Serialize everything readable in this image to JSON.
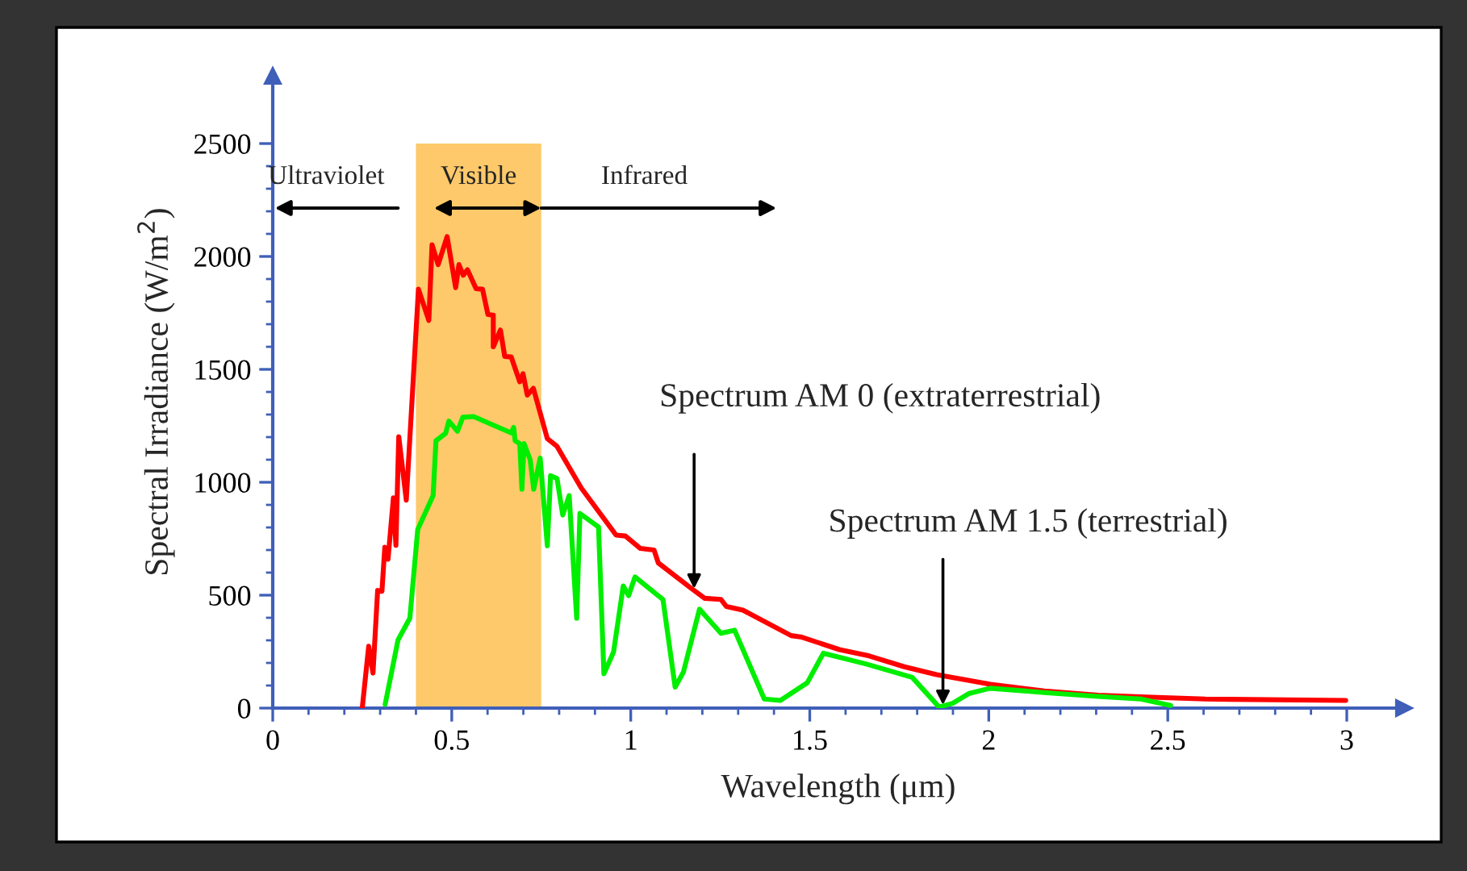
{
  "chart_data": {
    "type": "line",
    "xlabel": "Wavelength (μm)",
    "ylabel": "Spectral Irradiance (W/m$^{2}$)",
    "xlim": [
      0,
      3.16
    ],
    "ylim": [
      0,
      2800
    ],
    "xticks": [
      0,
      {
        "value": 0.1,
        "label": null
      },
      {
        "value": 0.2,
        "label": null
      },
      {
        "value": 0.3,
        "label": null
      },
      {
        "value": 0.4,
        "label": null
      },
      0.5,
      {
        "value": 0.6,
        "label": null
      },
      {
        "value": 0.7,
        "label": null
      },
      {
        "value": 0.8,
        "label": null
      },
      {
        "value": 0.9,
        "label": null
      },
      1,
      {
        "value": 1.1,
        "label": null
      },
      {
        "value": 1.2,
        "label": null
      },
      {
        "value": 1.3,
        "label": null
      },
      {
        "value": 1.4,
        "label": null
      },
      1.5,
      {
        "value": 1.6,
        "label": null
      },
      {
        "value": 1.7,
        "label": null
      },
      {
        "value": 1.8,
        "label": null
      },
      {
        "value": 1.9,
        "label": null
      },
      2,
      {
        "value": 2.1,
        "label": null
      },
      {
        "value": 2.2,
        "label": null
      },
      {
        "value": 2.3,
        "label": null
      },
      {
        "value": 2.4,
        "label": null
      },
      2.5,
      {
        "value": 2.6,
        "label": null
      },
      {
        "value": 2.7,
        "label": null
      },
      {
        "value": 2.8,
        "label": null
      },
      {
        "value": 2.9,
        "label": null
      },
      3
    ],
    "yticks": [
      0,
      {
        "value": 100,
        "label": null
      },
      {
        "value": 200,
        "label": null
      },
      {
        "value": 300,
        "label": null
      },
      {
        "value": 400,
        "label": null
      },
      500,
      {
        "value": 600,
        "label": null
      },
      {
        "value": 700,
        "label": null
      },
      {
        "value": 800,
        "label": null
      },
      {
        "value": 900,
        "label": null
      },
      1000,
      {
        "value": 1100,
        "label": null
      },
      {
        "value": 1200,
        "label": null
      },
      {
        "value": 1300,
        "label": null
      },
      {
        "value": 1400,
        "label": null
      },
      1500,
      {
        "value": 1600,
        "label": null
      },
      {
        "value": 1700,
        "label": null
      },
      {
        "value": 1800,
        "label": null
      },
      {
        "value": 1900,
        "label": null
      },
      2000,
      {
        "value": 2100,
        "label": null
      },
      {
        "value": 2200,
        "label": null
      },
      {
        "value": 2300,
        "label": null
      },
      {
        "value": 2400,
        "label": null
      },
      2500
    ],
    "bands": [
      {
        "axis": "x",
        "from": 0.4,
        "to": 0.75,
        "label": "Visible",
        "color": "#fdc96a"
      }
    ],
    "series": [
      {
        "color": "#ff0000",
        "x": [
          0.25,
          0.268,
          0.28,
          0.293,
          0.305,
          0.313,
          0.322,
          0.337,
          0.344,
          0.352,
          0.373,
          0.407,
          0.436,
          0.445,
          0.462,
          0.487,
          0.511,
          0.52,
          0.532,
          0.544,
          0.568,
          0.586,
          0.601,
          0.616,
          0.616,
          0.636,
          0.648,
          0.666,
          0.69,
          0.699,
          0.711,
          0.728,
          0.767,
          0.794,
          0.862,
          0.959,
          0.985,
          1.027,
          1.065,
          1.077,
          1.17,
          1.207,
          1.252,
          1.267,
          1.313,
          1.448,
          1.478,
          1.583,
          1.666,
          1.764,
          1.854,
          2.005,
          2.155,
          2.305,
          2.455,
          2.605,
          2.997
        ],
        "values": [
          0,
          274,
          155,
          521,
          517,
          712,
          659,
          931,
          721,
          1202,
          921,
          1855,
          1717,
          2052,
          1964,
          2088,
          1862,
          1964,
          1917,
          1941,
          1857,
          1855,
          1743,
          1740,
          1600,
          1674,
          1557,
          1555,
          1445,
          1481,
          1386,
          1416,
          1193,
          1159,
          974,
          766,
          762,
          707,
          700,
          643,
          529,
          486,
          481,
          450,
          434,
          321,
          314,
          259,
          231,
          183,
          148,
          105,
          76,
          57,
          48,
          40,
          34
        ]
      },
      {
        "color": "#00ee00",
        "x": [
          0.314,
          0.35,
          0.383,
          0.405,
          0.448,
          0.456,
          0.483,
          0.492,
          0.516,
          0.531,
          0.561,
          0.666,
          0.673,
          0.677,
          0.69,
          0.696,
          0.702,
          0.719,
          0.729,
          0.747,
          0.767,
          0.776,
          0.794,
          0.81,
          0.828,
          0.849,
          0.858,
          0.91,
          0.925,
          0.952,
          0.979,
          0.994,
          1.012,
          1.09,
          1.124,
          1.147,
          1.192,
          1.252,
          1.29,
          1.373,
          1.418,
          1.493,
          1.538,
          1.658,
          1.786,
          1.861,
          1.899,
          1.944,
          2.004,
          2.155,
          2.305,
          2.425,
          2.508
        ],
        "values": [
          16,
          302,
          398,
          791,
          941,
          1184,
          1217,
          1271,
          1226,
          1288,
          1291,
          1219,
          1243,
          1184,
          1171,
          969,
          1171,
          1100,
          969,
          1107,
          719,
          1029,
          1017,
          855,
          941,
          398,
          862,
          802,
          152,
          248,
          541,
          498,
          581,
          481,
          93,
          159,
          438,
          331,
          345,
          40,
          34,
          112,
          243,
          195,
          136,
          5,
          21,
          64,
          88,
          69,
          52,
          40,
          12
        ]
      }
    ],
    "annotations": [
      "Ultraviolet",
      "Infrared",
      {
        "text": "Spectrum AM 0 (extraterrestrial)",
        "x": 1.177,
        "y": 529
      },
      {
        "text": "Spectrum AM 1.5 (terrestrial)",
        "x": 1.872,
        "y": 14
      }
    ]
  }
}
